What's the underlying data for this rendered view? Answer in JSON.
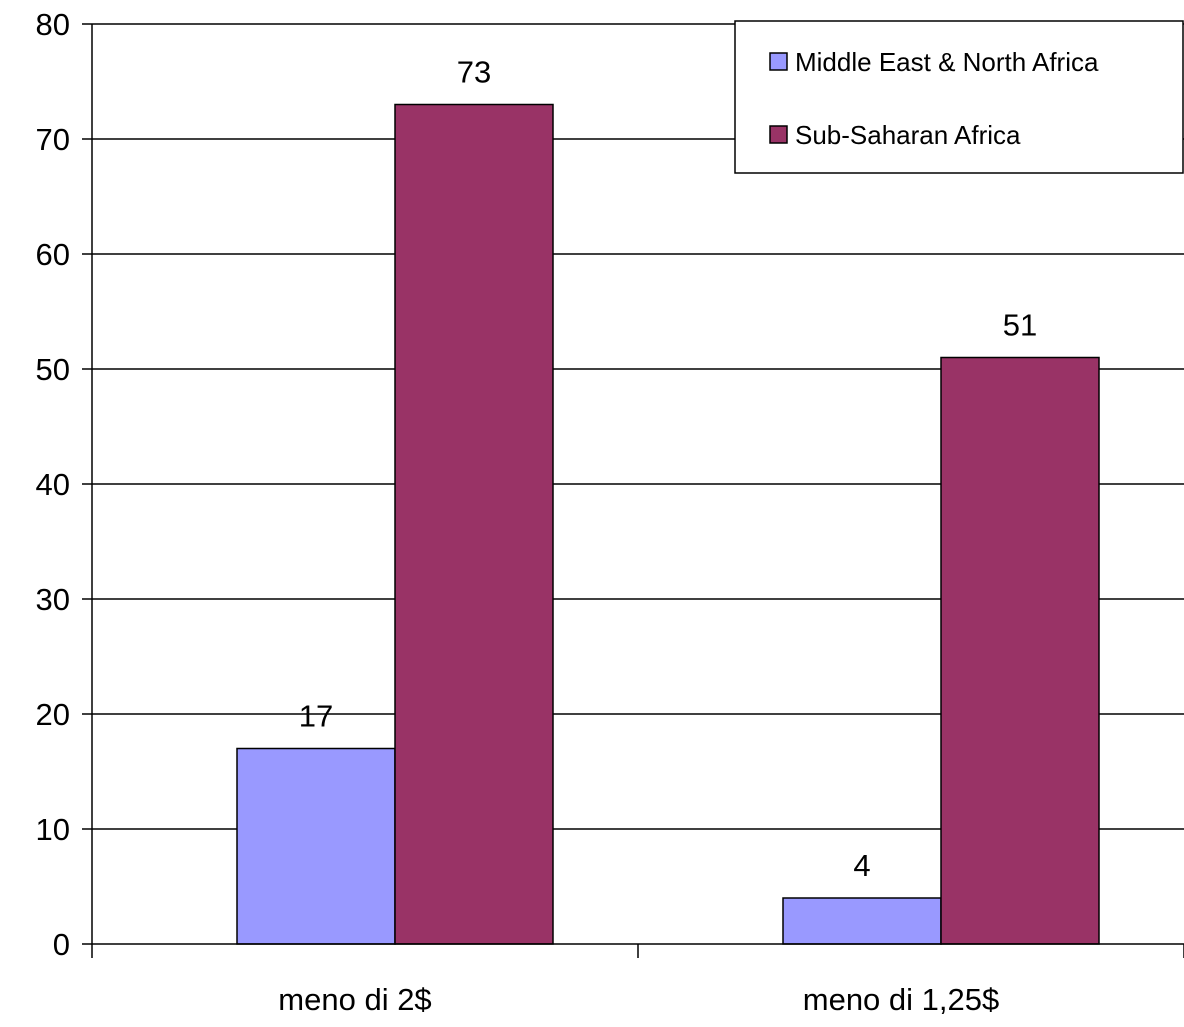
{
  "chart_data": {
    "type": "bar",
    "title": "",
    "xlabel": "",
    "ylabel": "",
    "categories": [
      "meno di 2$",
      "meno di 1,25$"
    ],
    "series": [
      {
        "name": "Middle East & North Africa",
        "values": [
          17,
          4
        ],
        "color": "#9999ff"
      },
      {
        "name": "Sub-Saharan Africa",
        "values": [
          73,
          51
        ],
        "color": "#993366"
      }
    ],
    "ylim": [
      0,
      80
    ],
    "yticks": [
      0,
      10,
      20,
      30,
      40,
      50,
      60,
      70,
      80
    ],
    "grid": true,
    "legend_position": "top-right",
    "data_labels": true
  }
}
